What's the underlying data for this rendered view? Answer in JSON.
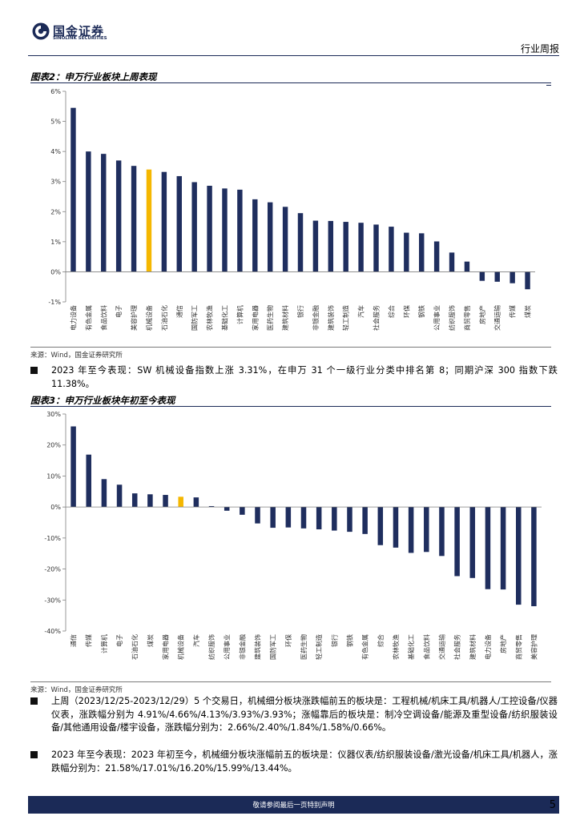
{
  "header": {
    "logo_cn": "国金证券",
    "logo_en": "SINOLINK SECURITIES",
    "doc_type": "行业周报"
  },
  "figure2": {
    "title": "图表2：申万行业板块上周表现",
    "source": "来源：Wind，国金证券研究所"
  },
  "figure3": {
    "title": "图表3：申万行业板块年初至今表现",
    "source": "来源：Wind，国金证券研究所"
  },
  "bullets": [
    "2023 年至今表现：SW 机械设备指数上涨 3.31%，在申万 31 个一级行业分类中排名第 8；同期沪深 300 指数下跌 11.38%。",
    "上周（2023/12/25-2023/12/29）5 个交易日，机械细分板块涨跌幅前五的板块是：工程机械/机床工具/机器人/工控设备/仪器仪表，涨跌幅分别为 4.91%/4.66%/4.13%/3.93%/3.93%；涨幅靠后的板块是：制冷空调设备/能源及重型设备/纺织服装设备/其他通用设备/楼宇设备，涨跌幅分别为：2.66%/2.40%/1.84%/1.58%/0.66%。",
    "2023 年至今表现：2023 年初至今，机械细分板块涨幅前五的板块是：仪器仪表/纺织服装设备/激光设备/机床工具/机器人，涨跌幅分别为：21.58%/17.01%/16.20%/15.99%/13.44%。"
  ],
  "footer": {
    "note": "敬请参阅最后一页特别声明",
    "page": "5"
  },
  "chart_data": [
    {
      "type": "bar",
      "title": "图表2：申万行业板块上周表现",
      "unit": "%",
      "ylim": [
        -1,
        6
      ],
      "yticks": [
        6,
        5,
        4,
        3,
        2,
        1,
        0,
        -1
      ],
      "ytick_labels": [
        "6%",
        "5%",
        "4%",
        "3%",
        "2%",
        "1%",
        "0%",
        "-1%"
      ],
      "highlight": "机械设备",
      "colors": {
        "bar": "#1f2e5e",
        "highlight": "#f5b700",
        "axis": "#7f7f7f"
      },
      "categories": [
        "电力设备",
        "有色金属",
        "食品饮料",
        "电子",
        "美容护理",
        "机械设备",
        "石油石化",
        "通信",
        "国防军工",
        "农林牧渔",
        "基础化工",
        "计算机",
        "家用电器",
        "医药生物",
        "建筑材料",
        "银行",
        "非银金融",
        "建筑装饰",
        "轻工制造",
        "汽车",
        "社会服务",
        "综合",
        "环保",
        "钢铁",
        "公用事业",
        "纺织服饰",
        "商贸零售",
        "房地产",
        "交通运输",
        "传媒",
        "煤炭"
      ],
      "values": [
        5.45,
        4.0,
        3.92,
        3.7,
        3.52,
        3.4,
        3.32,
        3.18,
        2.98,
        2.86,
        2.77,
        2.73,
        2.41,
        2.31,
        2.16,
        1.95,
        1.7,
        1.69,
        1.66,
        1.63,
        1.57,
        1.5,
        1.3,
        1.28,
        1.01,
        0.64,
        0.34,
        -0.3,
        -0.33,
        -0.38,
        -0.58
      ]
    },
    {
      "type": "bar",
      "title": "图表3：申万行业板块年初至今表现",
      "unit": "%",
      "ylim": [
        -40,
        30
      ],
      "yticks": [
        30,
        20,
        10,
        0,
        -10,
        -20,
        -30,
        -40
      ],
      "ytick_labels": [
        "30%",
        "20%",
        "10%",
        "0%",
        "-10%",
        "-20%",
        "-30%",
        "-40%"
      ],
      "highlight": "机械设备",
      "colors": {
        "bar": "#1f2e5e",
        "highlight": "#f5b700",
        "axis": "#7f7f7f"
      },
      "categories": [
        "通信",
        "传媒",
        "计算机",
        "电子",
        "石油石化",
        "煤炭",
        "家用电器",
        "机械设备",
        "汽车",
        "纺织服饰",
        "公用事业",
        "非银金融",
        "建筑装饰",
        "国防军工",
        "环保",
        "医药生物",
        "轻工制造",
        "银行",
        "钢铁",
        "有色金属",
        "综合",
        "农林牧渔",
        "基础化工",
        "食品饮料",
        "交通运输",
        "社会服务",
        "建筑材料",
        "电力设备",
        "房地产",
        "商贸零售",
        "美容护理"
      ],
      "values": [
        26.0,
        16.9,
        9.0,
        7.2,
        4.4,
        4.1,
        3.9,
        3.31,
        3.1,
        0.3,
        -1.2,
        -2.5,
        -5.3,
        -6.7,
        -6.6,
        -6.9,
        -7.2,
        -7.6,
        -8.0,
        -8.7,
        -12.3,
        -13.1,
        -14.8,
        -14.5,
        -15.8,
        -22.3,
        -22.9,
        -26.5,
        -26.6,
        -31.5,
        -32.0
      ]
    }
  ]
}
